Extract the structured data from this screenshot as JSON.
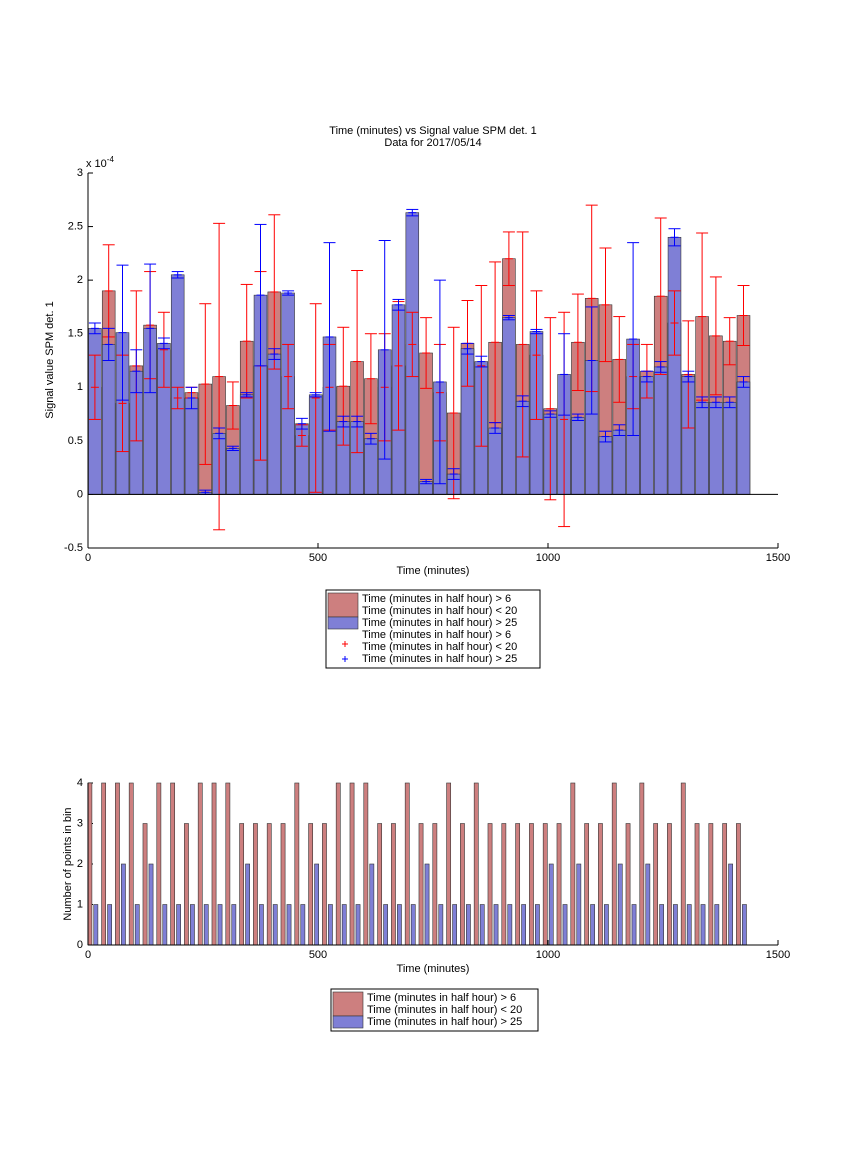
{
  "chart_data": [
    {
      "type": "bar",
      "title": "Time (minutes) vs Signal value SPM det. 1",
      "subtitle": "Data for 2017/05/14",
      "multiplier": {
        "base": "x 10",
        "exponent": "-4"
      },
      "xlabel": "Time (minutes)",
      "ylabel": "Signal value SPM det. 1",
      "xlim": [
        0,
        1500
      ],
      "xticks": [
        0,
        500,
        1000,
        1500
      ],
      "ylim": [
        -0.5,
        3
      ],
      "yticks": [
        -0.5,
        0,
        0.5,
        1,
        1.5,
        2,
        2.5,
        3
      ],
      "x": [
        15,
        45,
        75,
        105,
        135,
        165,
        195,
        225,
        255,
        285,
        315,
        345,
        375,
        405,
        435,
        465,
        495,
        525,
        555,
        585,
        615,
        645,
        675,
        705,
        735,
        765,
        795,
        825,
        855,
        885,
        915,
        945,
        975,
        1005,
        1035,
        1065,
        1095,
        1125,
        1155,
        1185,
        1215,
        1245,
        1275,
        1305,
        1335,
        1365,
        1395,
        1425
      ],
      "series": [
        {
          "name": [
            "Time (minutes in half hour) > 6",
            "Time (minutes in half hour) < 20"
          ],
          "color": "#cd7f7f",
          "error_color": "#ff0000",
          "values": [
            1.0,
            1.9,
            0.85,
            1.2,
            1.58,
            1.35,
            0.9,
            0.95,
            1.03,
            1.1,
            0.83,
            1.43,
            1.2,
            1.89,
            1.1,
            0.55,
            0.9,
            1.0,
            1.01,
            1.24,
            1.08,
            1.0,
            1.2,
            1.4,
            1.32,
            0.95,
            0.76,
            1.41,
            1.2,
            1.42,
            2.2,
            1.4,
            1.3,
            0.8,
            0.7,
            1.42,
            1.83,
            1.77,
            1.26,
            1.1,
            1.15,
            1.85,
            1.6,
            1.12,
            1.66,
            1.48,
            1.43,
            1.67
          ],
          "errors": [
            0.3,
            0.43,
            0.45,
            0.7,
            0.5,
            0.35,
            0.1,
            0.05,
            0.75,
            1.43,
            0.22,
            0.53,
            0.88,
            0.72,
            0.3,
            0.1,
            0.88,
            0.4,
            0.55,
            0.85,
            0.42,
            0.5,
            0.6,
            0.3,
            0.33,
            0.45,
            0.8,
            0.4,
            0.75,
            0.75,
            0.25,
            1.05,
            0.6,
            0.85,
            1.0,
            0.45,
            0.87,
            0.53,
            0.4,
            0.3,
            0.25,
            0.73,
            0.3,
            0.5,
            0.78,
            0.55,
            0.22,
            0.28
          ]
        },
        {
          "name": [
            "Time (minutes in half hour) > 25"
          ],
          "color": "#7f7fd6",
          "error_color": "#0000ff",
          "values": [
            1.55,
            1.4,
            1.51,
            1.15,
            1.55,
            1.41,
            2.05,
            0.9,
            0.02,
            0.57,
            0.43,
            0.93,
            1.86,
            1.31,
            1.88,
            0.66,
            0.93,
            1.47,
            0.68,
            0.68,
            0.52,
            1.35,
            1.77,
            2.63,
            0.12,
            1.05,
            0.19,
            1.36,
            1.24,
            0.62,
            1.65,
            0.87,
            1.52,
            0.75,
            1.12,
            0.72,
            1.25,
            0.54,
            0.6,
            1.45,
            1.1,
            1.19,
            2.4,
            1.1,
            0.86,
            0.86,
            0.86,
            1.05
          ],
          "errors": [
            0.05,
            0.15,
            0.63,
            0.2,
            0.6,
            0.05,
            0.03,
            0.1,
            0.02,
            0.05,
            0.02,
            0.02,
            0.66,
            0.05,
            0.02,
            0.05,
            0.02,
            0.88,
            0.05,
            0.05,
            0.05,
            1.02,
            0.05,
            0.03,
            0.02,
            0.95,
            0.05,
            0.05,
            0.05,
            0.05,
            0.02,
            0.05,
            0.02,
            0.03,
            0.38,
            0.03,
            0.5,
            0.05,
            0.05,
            0.9,
            0.05,
            0.05,
            0.08,
            0.05,
            0.05,
            0.05,
            0.05,
            0.05
          ]
        }
      ]
    },
    {
      "type": "bar",
      "xlabel": "Time (minutes)",
      "ylabel": "Number of points in bin",
      "xlim": [
        0,
        1500
      ],
      "xticks": [
        0,
        500,
        1000,
        1500
      ],
      "ylim": [
        0,
        4
      ],
      "yticks": [
        0,
        1,
        2,
        3,
        4
      ],
      "series": [
        {
          "name": [
            "Time (minutes in half hour) > 6",
            "Time (minutes in half hour) < 20"
          ],
          "color": "#cd7f7f",
          "x": [
            4,
            34,
            64,
            94,
            124,
            154,
            184,
            214,
            244,
            274,
            304,
            334,
            364,
            394,
            424,
            454,
            484,
            514,
            544,
            574,
            604,
            634,
            664,
            694,
            724,
            754,
            784,
            814,
            844,
            874,
            904,
            934,
            964,
            994,
            1024,
            1054,
            1084,
            1114,
            1144,
            1174,
            1204,
            1234,
            1264,
            1294,
            1324,
            1354,
            1384,
            1414
          ],
          "values": [
            4,
            4,
            4,
            4,
            3,
            4,
            4,
            3,
            4,
            4,
            4,
            3,
            3,
            3,
            3,
            4,
            3,
            3,
            4,
            4,
            4,
            3,
            3,
            4,
            3,
            3,
            4,
            3,
            4,
            3,
            3,
            3,
            3,
            3,
            3,
            4,
            3,
            3,
            4,
            3,
            4,
            3,
            3,
            4,
            3,
            3,
            3,
            3
          ]
        },
        {
          "name": [
            "Time (minutes in half hour) > 25"
          ],
          "color": "#7f7fd6",
          "x": [
            17,
            47,
            77,
            107,
            137,
            167,
            197,
            227,
            257,
            287,
            317,
            347,
            377,
            407,
            437,
            467,
            497,
            527,
            557,
            587,
            617,
            647,
            677,
            707,
            737,
            767,
            797,
            827,
            857,
            887,
            917,
            947,
            977,
            1007,
            1037,
            1067,
            1097,
            1127,
            1157,
            1187,
            1217,
            1247,
            1277,
            1307,
            1337,
            1367,
            1397,
            1427
          ],
          "values": [
            1,
            1,
            2,
            1,
            2,
            1,
            1,
            1,
            1,
            1,
            1,
            2,
            1,
            1,
            1,
            1,
            2,
            1,
            1,
            1,
            2,
            1,
            1,
            1,
            2,
            1,
            1,
            1,
            1,
            1,
            1,
            1,
            1,
            2,
            1,
            2,
            1,
            1,
            2,
            1,
            2,
            1,
            1,
            1,
            1,
            1,
            2,
            1
          ]
        }
      ]
    }
  ]
}
